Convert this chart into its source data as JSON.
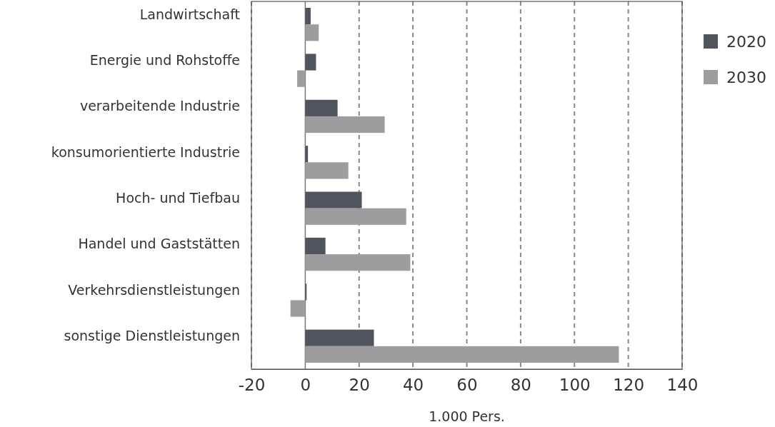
{
  "chart_data": {
    "type": "bar",
    "orientation": "horizontal",
    "xlabel": "1.000 Pers.",
    "categories": [
      "Landwirtschaft",
      "Energie und Rohstoffe",
      "verarbeitende Industrie",
      "konsumorientierte Industrie",
      "Hoch- und Tiefbau",
      "Handel und Gaststätten",
      "Verkehrsdienstleistungen",
      "sonstige Dienstleistungen"
    ],
    "series": [
      {
        "name": "2020",
        "color": "#50545c",
        "values": [
          2,
          4,
          12,
          1,
          21,
          7.5,
          0.5,
          25.5
        ]
      },
      {
        "name": "2030",
        "color": "#9d9da0",
        "values": [
          5,
          -3,
          29.5,
          16,
          37.5,
          39,
          -5.5,
          116.5
        ]
      }
    ],
    "xlim": [
      -20,
      140
    ],
    "xticks": [
      -20,
      0,
      20,
      40,
      60,
      80,
      100,
      120,
      140
    ],
    "grid": "x",
    "legend": "top right"
  }
}
